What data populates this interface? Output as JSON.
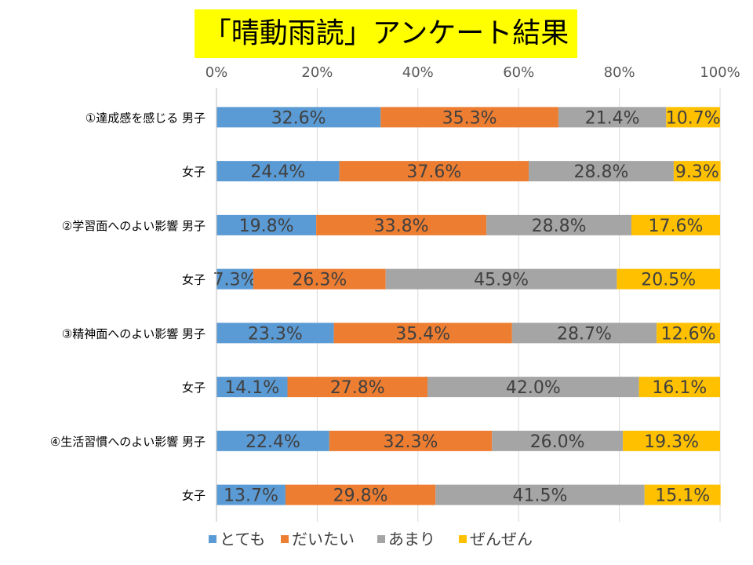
{
  "title": "「晴動雨読」アンケート結果",
  "chart_data": {
    "type": "bar",
    "orientation": "horizontal",
    "stacked": "percent",
    "title": "「晴動雨読」アンケート結果",
    "xlim": [
      0,
      100
    ],
    "x_ticks": [
      "0%",
      "20%",
      "40%",
      "60%",
      "80%",
      "100%"
    ],
    "x_tick_values": [
      0,
      20,
      40,
      60,
      80,
      100
    ],
    "grid": true,
    "legend_position": "bottom",
    "categories": [
      {
        "group": "①達成感を感じる",
        "label": "男子"
      },
      {
        "group": "",
        "label": "女子"
      },
      {
        "group": "②学習面へのよい影響",
        "label": "男子"
      },
      {
        "group": "",
        "label": "女子"
      },
      {
        "group": "③精神面へのよい影響",
        "label": "男子"
      },
      {
        "group": "",
        "label": "女子"
      },
      {
        "group": "④生活習慣へのよい影響",
        "label": "男子"
      },
      {
        "group": "",
        "label": "女子"
      }
    ],
    "series": [
      {
        "name": "とても",
        "color": "#5b9bd5",
        "values": [
          32.6,
          24.4,
          19.8,
          7.3,
          23.3,
          14.1,
          22.4,
          13.7
        ],
        "labels": [
          "32.6%",
          "24.4%",
          "19.8%",
          "7.3%",
          "23.3%",
          "14.1%",
          "22.4%",
          "13.7%"
        ]
      },
      {
        "name": "だいたい",
        "color": "#ed7d31",
        "values": [
          35.3,
          37.6,
          33.8,
          26.3,
          35.4,
          27.8,
          32.3,
          29.8
        ],
        "labels": [
          "35.3%",
          "37.6%",
          "33.8%",
          "26.3%",
          "35.4%",
          "27.8%",
          "32.3%",
          "29.8%"
        ]
      },
      {
        "name": "あまり",
        "color": "#a5a5a5",
        "values": [
          21.4,
          28.8,
          28.8,
          45.9,
          28.7,
          42.0,
          26.0,
          41.5
        ],
        "labels": [
          "21.4%",
          "28.8%",
          "28.8%",
          "45.9%",
          "28.7%",
          "42.0%",
          "26.0%",
          "41.5%"
        ]
      },
      {
        "name": "ぜんぜん",
        "color": "#ffc000",
        "values": [
          10.7,
          9.3,
          17.6,
          20.5,
          12.6,
          16.1,
          19.3,
          15.1
        ],
        "labels": [
          "10.7%",
          "9.3%",
          "17.6%",
          "20.5%",
          "12.6%",
          "16.1%",
          "19.3%",
          "15.1%"
        ]
      }
    ]
  }
}
